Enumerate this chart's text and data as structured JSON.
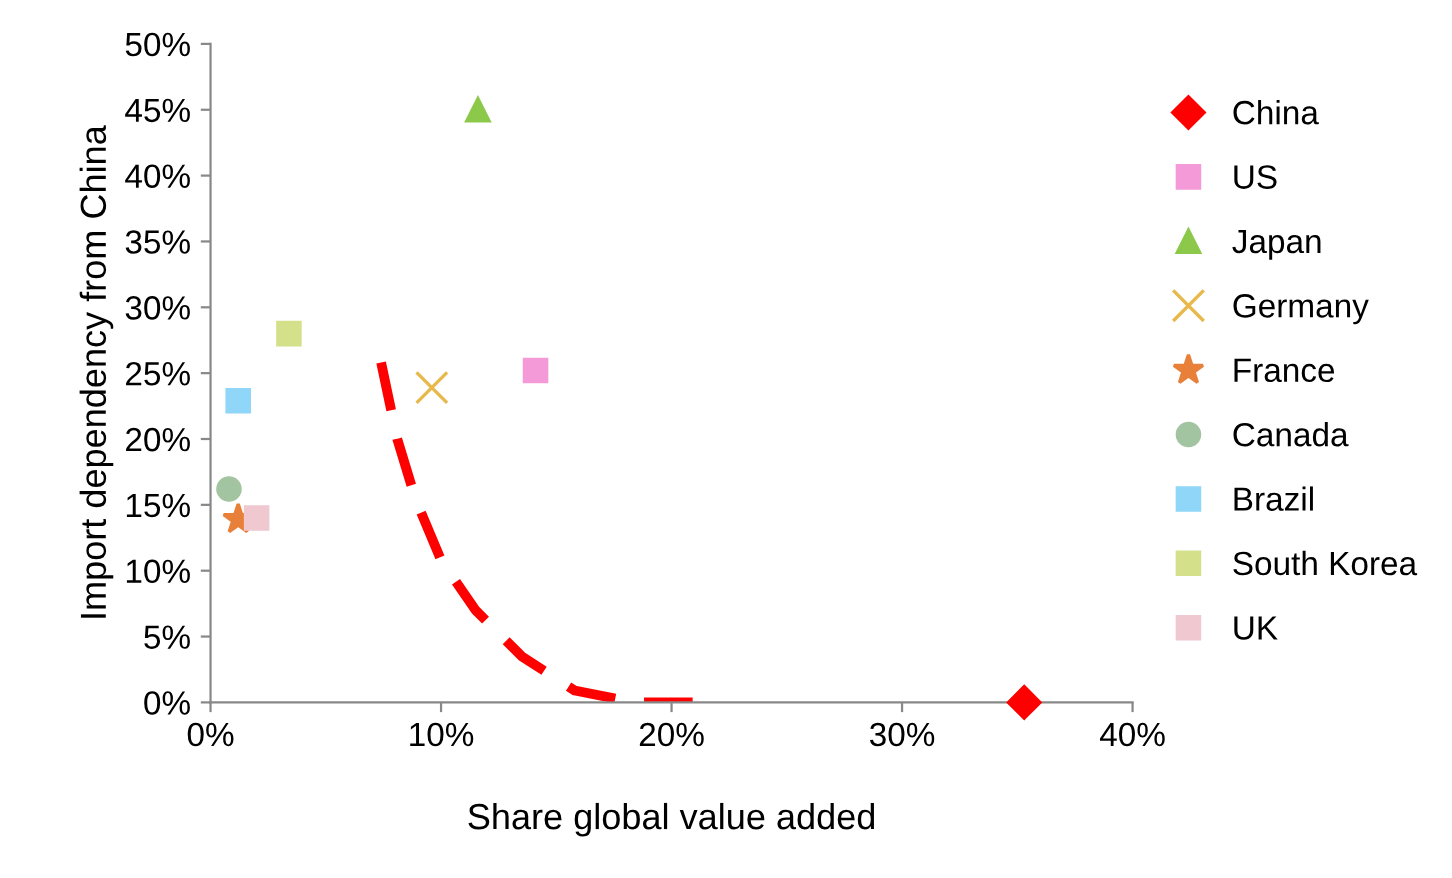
{
  "chart_data": {
    "type": "scatter",
    "xlabel": "Share global value added",
    "ylabel": "Import dependency from China",
    "xlim": [
      0,
      40
    ],
    "xticks": [
      {
        "value": 0,
        "label": "0%"
      },
      {
        "value": 10,
        "label": "10%"
      },
      {
        "value": 20,
        "label": "20%"
      },
      {
        "value": 30,
        "label": "30%"
      },
      {
        "value": 40,
        "label": "40%"
      }
    ],
    "ylim": [
      0,
      50
    ],
    "yticks": [
      {
        "value": 0,
        "label": "0%"
      },
      {
        "value": 5,
        "label": "5%"
      },
      {
        "value": 10,
        "label": "10%"
      },
      {
        "value": 15,
        "label": "15%"
      },
      {
        "value": 20,
        "label": "20%"
      },
      {
        "value": 25,
        "label": "25%"
      },
      {
        "value": 30,
        "label": "30%"
      },
      {
        "value": 35,
        "label": "35%"
      },
      {
        "value": 40,
        "label": "40%"
      },
      {
        "value": 45,
        "label": "45%"
      },
      {
        "value": 50,
        "label": "50%"
      }
    ],
    "grid": false,
    "legend": "right",
    "series": [
      {
        "name": "China",
        "color": "#ff0000",
        "marker": "diamond",
        "x": [
          35.3
        ],
        "values": [
          0
        ]
      },
      {
        "name": "US",
        "color": "#f59ad8",
        "marker": "square",
        "x": [
          14.1
        ],
        "values": [
          25.2
        ]
      },
      {
        "name": "Japan",
        "color": "#8cc84a",
        "marker": "triangle",
        "x": [
          11.6
        ],
        "values": [
          45
        ]
      },
      {
        "name": "Germany",
        "color": "#e8b84a",
        "marker": "cross",
        "x": [
          9.6
        ],
        "values": [
          23.9
        ]
      },
      {
        "name": "France",
        "color": "#e8803a",
        "marker": "star",
        "x": [
          1.2
        ],
        "values": [
          13.9
        ]
      },
      {
        "name": "Canada",
        "color": "#a3c4a0",
        "marker": "circle",
        "x": [
          0.8
        ],
        "values": [
          16.2
        ]
      },
      {
        "name": "Brazil",
        "color": "#8fd6f8",
        "marker": "square",
        "x": [
          1.2
        ],
        "values": [
          22.9
        ]
      },
      {
        "name": "South Korea",
        "color": "#d4e08a",
        "marker": "square",
        "x": [
          3.4
        ],
        "values": [
          28.0
        ]
      },
      {
        "name": "UK",
        "color": "#f0c8d0",
        "marker": "square",
        "x": [
          2.0
        ],
        "values": [
          14.0
        ]
      },
      {
        "type": "line",
        "color": "#ff0000",
        "line_style": "dashed",
        "marker": "none",
        "x": [
          7.4,
          8.1,
          8.9,
          10.0,
          11.5,
          13.5,
          15.8,
          18.4,
          21.0
        ],
        "values": [
          25.8,
          20.0,
          15.4,
          10.8,
          7.0,
          3.5,
          0.9,
          0,
          0
        ]
      }
    ]
  }
}
